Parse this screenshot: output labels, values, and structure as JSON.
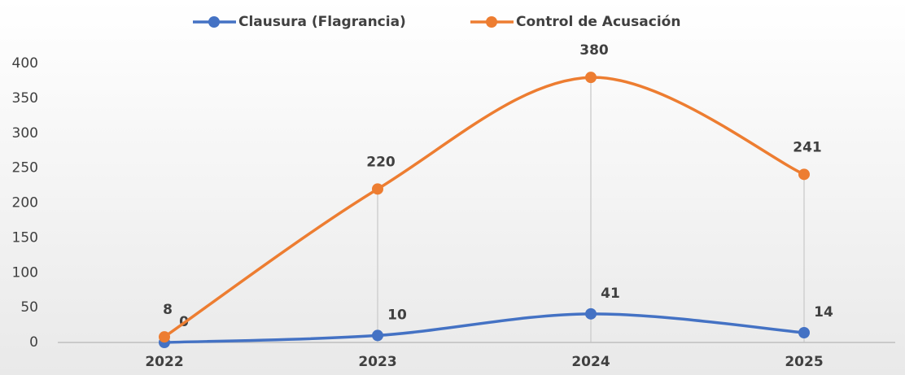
{
  "chart_data": {
    "type": "line",
    "categories": [
      "2022",
      "2023",
      "2024",
      "2025"
    ],
    "series": [
      {
        "name": "Clausura (Flagrancia)",
        "color": "#4472c4",
        "values": [
          0,
          10,
          41,
          14
        ]
      },
      {
        "name": "Control de Acusación",
        "color": "#ed7d31",
        "values": [
          8,
          220,
          380,
          241
        ]
      }
    ],
    "ylim": [
      0,
      400
    ],
    "yticks": [
      0,
      50,
      100,
      150,
      200,
      250,
      300,
      350,
      400
    ],
    "smooth": true,
    "drop_lines": true,
    "legend": "top",
    "grid": false
  }
}
